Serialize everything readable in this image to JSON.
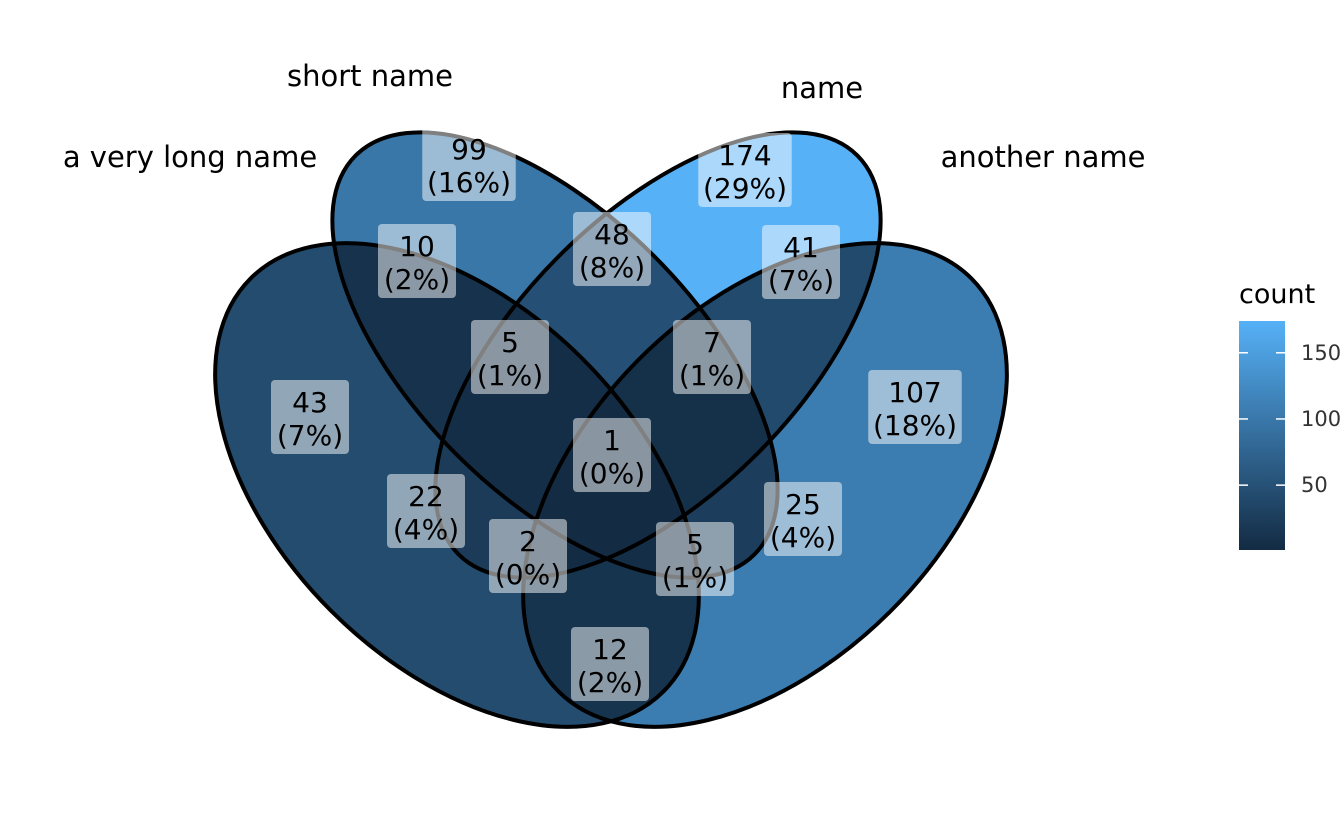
{
  "chart_data": {
    "type": "venn",
    "sets": [
      "a very long name",
      "short name",
      "name",
      "another name"
    ],
    "regions": [
      {
        "sets": [
          "short name"
        ],
        "count": 99,
        "percent": "16%"
      },
      {
        "sets": [
          "name"
        ],
        "count": 174,
        "percent": "29%"
      },
      {
        "sets": [
          "a very long name",
          "short name"
        ],
        "count": 10,
        "percent": "2%"
      },
      {
        "sets": [
          "short name",
          "name"
        ],
        "count": 48,
        "percent": "8%"
      },
      {
        "sets": [
          "name",
          "another name"
        ],
        "count": 41,
        "percent": "7%"
      },
      {
        "sets": [
          "a very long name",
          "short name",
          "name"
        ],
        "count": 5,
        "percent": "1%"
      },
      {
        "sets": [
          "short name",
          "name",
          "another name"
        ],
        "count": 7,
        "percent": "1%"
      },
      {
        "sets": [
          "a very long name"
        ],
        "count": 43,
        "percent": "7%"
      },
      {
        "sets": [
          "another name"
        ],
        "count": 107,
        "percent": "18%"
      },
      {
        "sets": [
          "a very long name",
          "short name",
          "name",
          "another name"
        ],
        "count": 1,
        "percent": "0%"
      },
      {
        "sets": [
          "a very long name",
          "name"
        ],
        "count": 22,
        "percent": "4%"
      },
      {
        "sets": [
          "short name",
          "another name"
        ],
        "count": 25,
        "percent": "4%"
      },
      {
        "sets": [
          "a very long name",
          "name",
          "another name"
        ],
        "count": 2,
        "percent": "0%"
      },
      {
        "sets": [
          "a very long name",
          "short name",
          "another name"
        ],
        "count": 5,
        "percent": "1%"
      },
      {
        "sets": [
          "a very long name",
          "another name"
        ],
        "count": 12,
        "percent": "2%"
      }
    ],
    "legend": {
      "title": "count",
      "placement": "right",
      "ticks": [
        50,
        100,
        150
      ],
      "range": [
        1,
        174
      ],
      "color_low": "#132B43",
      "color_high": "#56B1F7"
    }
  }
}
